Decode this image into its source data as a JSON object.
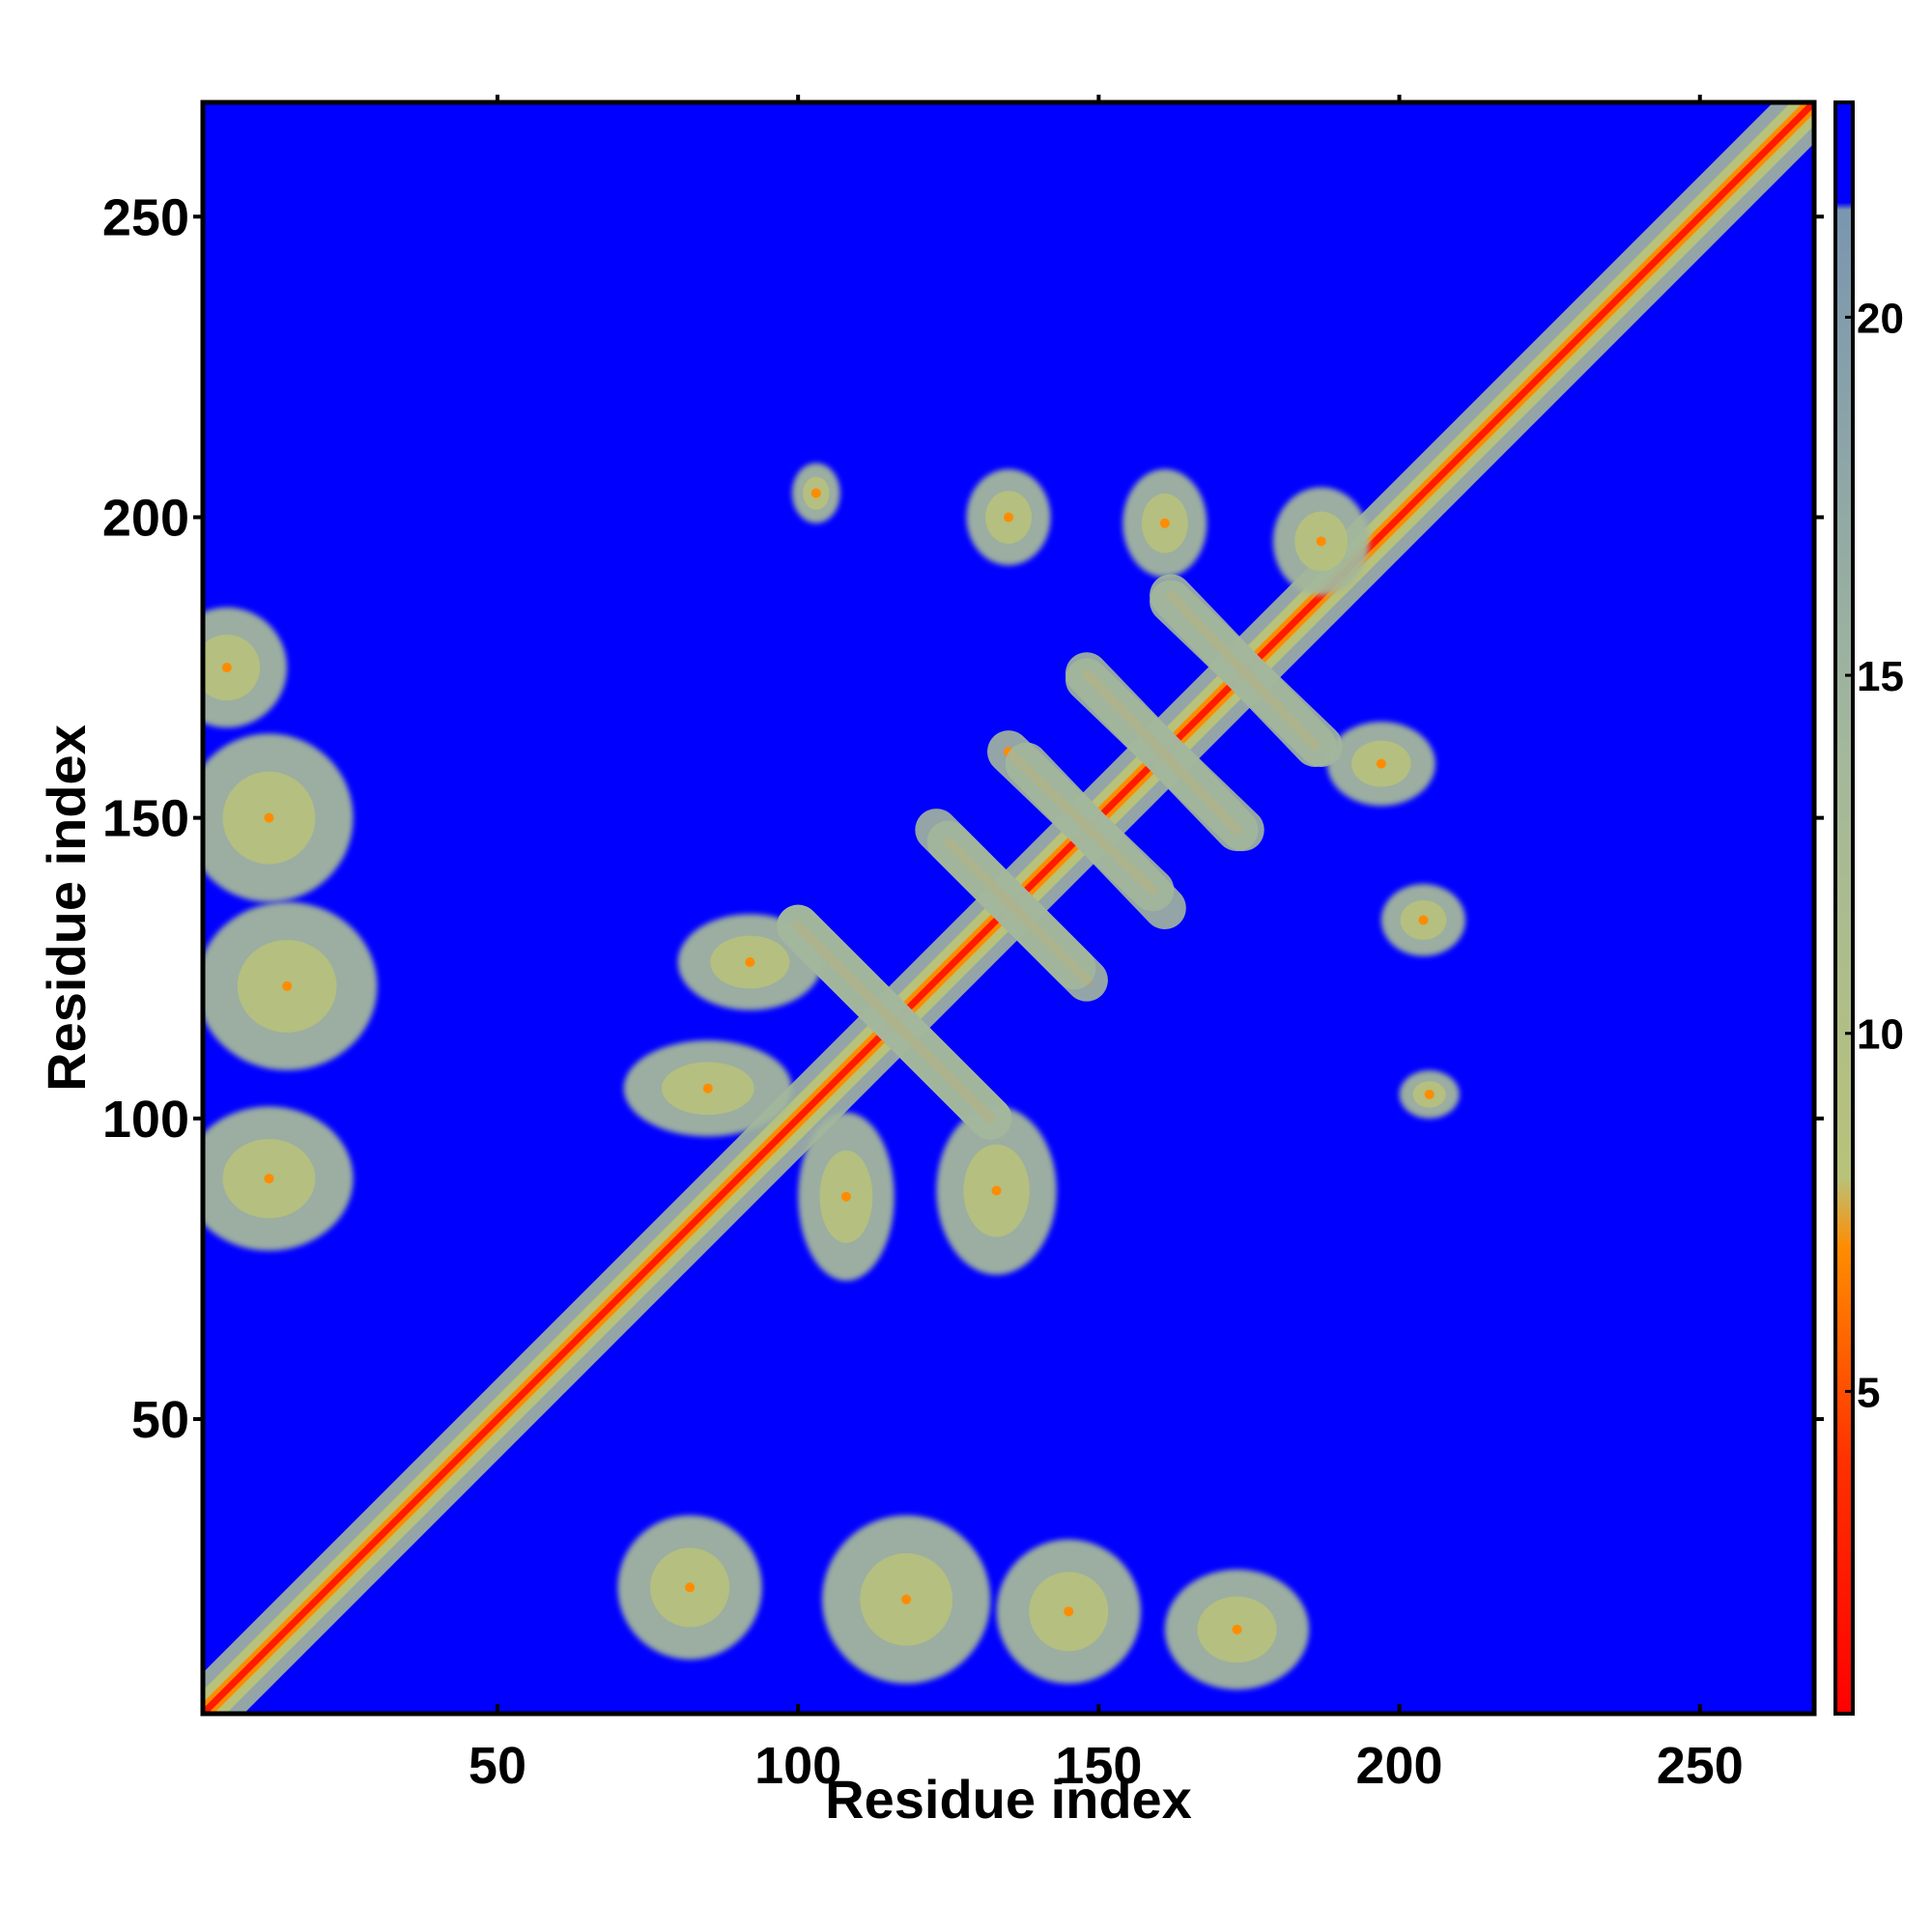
{
  "chart_data": {
    "type": "heatmap",
    "title": "",
    "xlabel": "Residue index",
    "ylabel": "Residue index",
    "xlim": [
      1,
      269
    ],
    "ylim": [
      1,
      269
    ],
    "x_ticks": [
      50,
      100,
      150,
      200,
      250
    ],
    "y_ticks": [
      50,
      100,
      150,
      200,
      250
    ],
    "background_color": "#0000ff",
    "description": "Symmetric residue-residue distance map; contact regions shown in red/orange/green-grey, distant pairs in blue",
    "colorbar": {
      "range": [
        0.5,
        23
      ],
      "ticks": [
        5,
        10,
        15,
        20
      ],
      "stops": [
        {
          "value": 0.5,
          "color": "#ff0000"
        },
        {
          "value": 4,
          "color": "#ff3000"
        },
        {
          "value": 7,
          "color": "#ff8c00"
        },
        {
          "value": 8,
          "color": "#b8c27a"
        },
        {
          "value": 14,
          "color": "#a3b79c"
        },
        {
          "value": 21.5,
          "color": "#7a96b0"
        },
        {
          "value": 21.6,
          "color": "#0000ff"
        },
        {
          "value": 23,
          "color": "#0000ff"
        }
      ]
    },
    "features": [
      {
        "kind": "diagonal",
        "from": 1,
        "to": 269
      },
      {
        "kind": "blob",
        "x": 5,
        "y": 175,
        "rx": 10,
        "ry": 10
      },
      {
        "kind": "blob",
        "x": 12,
        "y": 150,
        "rx": 14,
        "ry": 14
      },
      {
        "kind": "blob",
        "x": 15,
        "y": 122,
        "rx": 15,
        "ry": 14
      },
      {
        "kind": "blob",
        "x": 12,
        "y": 90,
        "rx": 14,
        "ry": 12
      },
      {
        "kind": "blob",
        "x": 82,
        "y": 22,
        "rx": 12,
        "ry": 12
      },
      {
        "kind": "blob",
        "x": 118,
        "y": 20,
        "rx": 14,
        "ry": 14
      },
      {
        "kind": "blob",
        "x": 145,
        "y": 18,
        "rx": 12,
        "ry": 12
      },
      {
        "kind": "blob",
        "x": 173,
        "y": 15,
        "rx": 12,
        "ry": 10
      },
      {
        "kind": "blob",
        "x": 103,
        "y": 204,
        "rx": 4,
        "ry": 5
      },
      {
        "kind": "blob",
        "x": 135,
        "y": 200,
        "rx": 7,
        "ry": 8
      },
      {
        "kind": "blob",
        "x": 161,
        "y": 199,
        "rx": 7,
        "ry": 9
      },
      {
        "kind": "blob",
        "x": 187,
        "y": 196,
        "rx": 8,
        "ry": 9
      },
      {
        "kind": "blob",
        "x": 197,
        "y": 159,
        "rx": 9,
        "ry": 7
      },
      {
        "kind": "blob",
        "x": 204,
        "y": 133,
        "rx": 7,
        "ry": 6
      },
      {
        "kind": "blob",
        "x": 205,
        "y": 104,
        "rx": 5,
        "ry": 4
      },
      {
        "kind": "blob",
        "x": 92,
        "y": 126,
        "rx": 12,
        "ry": 8
      },
      {
        "kind": "blob",
        "x": 85,
        "y": 105,
        "rx": 14,
        "ry": 8
      },
      {
        "kind": "blob",
        "x": 108,
        "y": 87,
        "rx": 8,
        "ry": 14
      },
      {
        "kind": "blob",
        "x": 133,
        "y": 88,
        "rx": 10,
        "ry": 14
      },
      {
        "kind": "antidiagonal",
        "from": [
          100,
          132
        ],
        "to": [
          132,
          100
        ]
      },
      {
        "kind": "antidiagonal",
        "from": [
          125,
          146
        ],
        "to": [
          148,
          123
        ]
      },
      {
        "kind": "antidiagonal",
        "from": [
          135,
          161
        ],
        "to": [
          159,
          138
        ]
      },
      {
        "kind": "antidiagonal",
        "from": [
          148,
          174
        ],
        "to": [
          173,
          148
        ]
      },
      {
        "kind": "antidiagonal",
        "from": [
          162,
          187
        ],
        "to": [
          186,
          162
        ]
      }
    ]
  }
}
